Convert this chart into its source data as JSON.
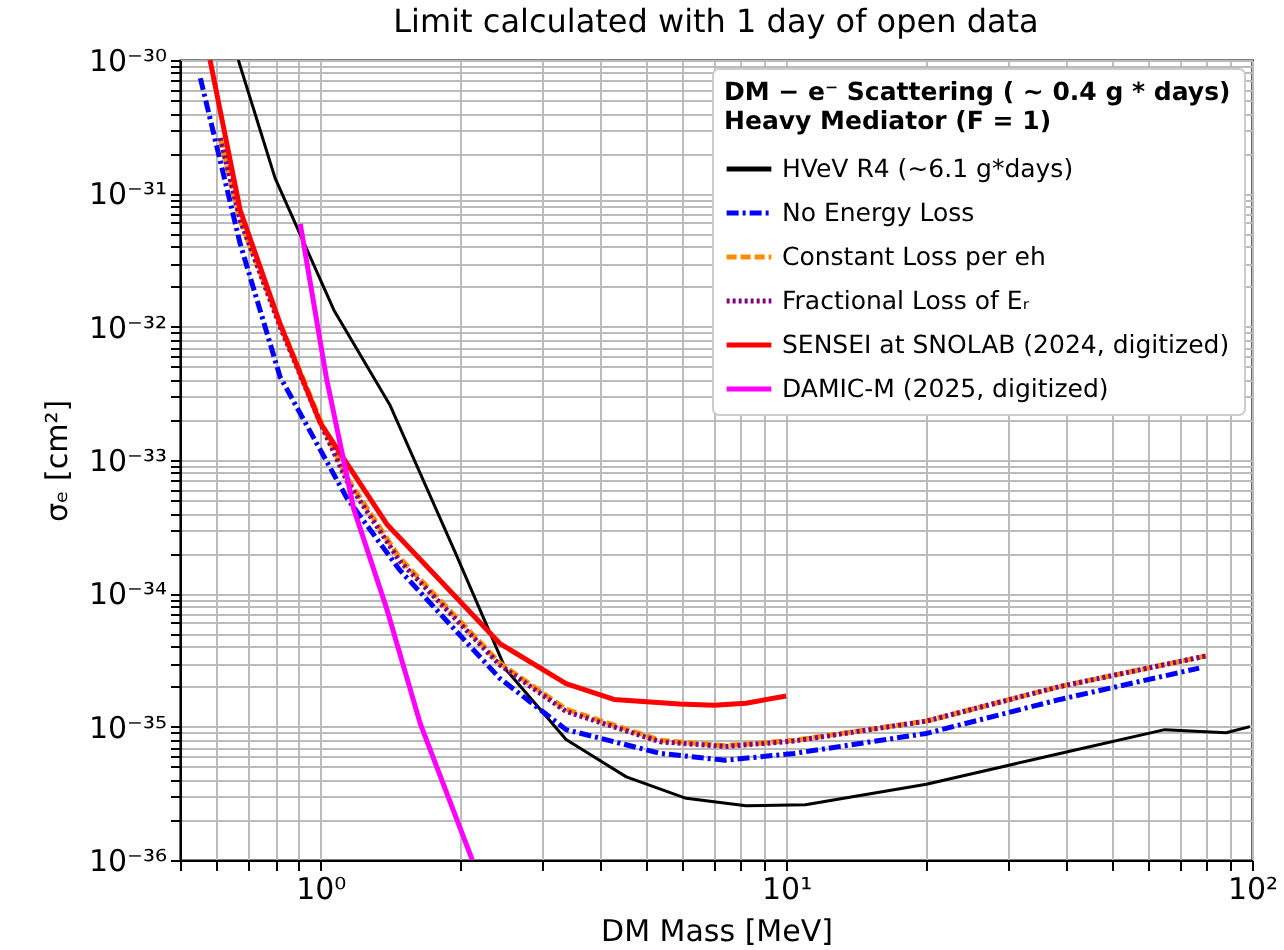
{
  "chart_data": {
    "type": "line",
    "title": "Limit calculated with 1 day of open data",
    "xlabel": "DM Mass [MeV]",
    "ylabel": "σₑ [cm²]",
    "legend_title": "DM − e⁻ Scattering ( ~ 0.4 g * days)\nHeavy Mediator (F = 1)",
    "log": "xy",
    "grid": true,
    "legend": "top right",
    "xlim": [
      0.5,
      100
    ],
    "ylim": [
      1e-36,
      1e-30
    ],
    "xticks": [
      {
        "value": 0.5,
        "label": null
      },
      {
        "value": 0.6,
        "label": null
      },
      {
        "value": 0.7,
        "label": null
      },
      {
        "value": 0.8,
        "label": null
      },
      {
        "value": 0.9,
        "label": null
      },
      {
        "value": 1,
        "label": "10⁰"
      },
      {
        "value": 2,
        "label": null
      },
      {
        "value": 3,
        "label": null
      },
      {
        "value": 4,
        "label": null
      },
      {
        "value": 5,
        "label": null
      },
      {
        "value": 6,
        "label": null
      },
      {
        "value": 7,
        "label": null
      },
      {
        "value": 8,
        "label": null
      },
      {
        "value": 9,
        "label": null
      },
      {
        "value": 10,
        "label": "10¹"
      },
      {
        "value": 20,
        "label": null
      },
      {
        "value": 30,
        "label": null
      },
      {
        "value": 40,
        "label": null
      },
      {
        "value": 50,
        "label": null
      },
      {
        "value": 60,
        "label": null
      },
      {
        "value": 70,
        "label": null
      },
      {
        "value": 80,
        "label": null
      },
      {
        "value": 90,
        "label": null
      },
      {
        "value": 100,
        "label": "10²"
      }
    ],
    "yticks": [
      {
        "value": 1e-36,
        "label": "10⁻³⁶"
      },
      {
        "value": 2e-36,
        "label": null
      },
      {
        "value": 3e-36,
        "label": null
      },
      {
        "value": 4e-36,
        "label": null
      },
      {
        "value": 5e-36,
        "label": null
      },
      {
        "value": 6e-36,
        "label": null
      },
      {
        "value": 7e-36,
        "label": null
      },
      {
        "value": 8e-36,
        "label": null
      },
      {
        "value": 9e-36,
        "label": null
      },
      {
        "value": 1e-35,
        "label": "10⁻³⁵"
      },
      {
        "value": 2e-35,
        "label": null
      },
      {
        "value": 3e-35,
        "label": null
      },
      {
        "value": 4e-35,
        "label": null
      },
      {
        "value": 5e-35,
        "label": null
      },
      {
        "value": 6e-35,
        "label": null
      },
      {
        "value": 7e-35,
        "label": null
      },
      {
        "value": 8e-35,
        "label": null
      },
      {
        "value": 9e-35,
        "label": null
      },
      {
        "value": 1e-34,
        "label": "10⁻³⁴"
      },
      {
        "value": 2e-34,
        "label": null
      },
      {
        "value": 3e-34,
        "label": null
      },
      {
        "value": 4e-34,
        "label": null
      },
      {
        "value": 5e-34,
        "label": null
      },
      {
        "value": 6e-34,
        "label": null
      },
      {
        "value": 7e-34,
        "label": null
      },
      {
        "value": 8e-34,
        "label": null
      },
      {
        "value": 9e-34,
        "label": null
      },
      {
        "value": 1e-33,
        "label": "10⁻³³"
      },
      {
        "value": 2e-33,
        "label": null
      },
      {
        "value": 3e-33,
        "label": null
      },
      {
        "value": 4e-33,
        "label": null
      },
      {
        "value": 5e-33,
        "label": null
      },
      {
        "value": 6e-33,
        "label": null
      },
      {
        "value": 7e-33,
        "label": null
      },
      {
        "value": 8e-33,
        "label": null
      },
      {
        "value": 9e-33,
        "label": null
      },
      {
        "value": 1e-32,
        "label": "10⁻³²"
      },
      {
        "value": 2e-32,
        "label": null
      },
      {
        "value": 3e-32,
        "label": null
      },
      {
        "value": 4e-32,
        "label": null
      },
      {
        "value": 5e-32,
        "label": null
      },
      {
        "value": 6e-32,
        "label": null
      },
      {
        "value": 7e-32,
        "label": null
      },
      {
        "value": 8e-32,
        "label": null
      },
      {
        "value": 9e-32,
        "label": null
      },
      {
        "value": 1e-31,
        "label": "10⁻³¹"
      },
      {
        "value": 2e-31,
        "label": null
      },
      {
        "value": 3e-31,
        "label": null
      },
      {
        "value": 4e-31,
        "label": null
      },
      {
        "value": 5e-31,
        "label": null
      },
      {
        "value": 6e-31,
        "label": null
      },
      {
        "value": 7e-31,
        "label": null
      },
      {
        "value": 8e-31,
        "label": null
      },
      {
        "value": 9e-31,
        "label": null
      },
      {
        "value": 1e-30,
        "label": "10⁻³⁰"
      }
    ],
    "series": [
      {
        "name": "HVeV R4 (~6.1 g*days)",
        "color": "#000000",
        "line_style": "solid",
        "x": [
          0.667,
          0.8,
          1.07,
          1.41,
          1.94,
          2.5,
          3.37,
          4.54,
          6.1,
          8.2,
          11,
          20,
          38.7,
          65,
          88,
          99
        ],
        "values": [
          1e-30,
          1.3e-31,
          1.33e-32,
          2.6e-33,
          2.1e-34,
          2.7e-35,
          8e-36,
          4.2e-36,
          2.9e-36,
          2.55e-36,
          2.6e-36,
          3.7e-36,
          6.3e-36,
          9.5e-36,
          9e-36,
          1e-35
        ]
      },
      {
        "name": "No Energy Loss",
        "color": "#0000ff",
        "line_style": "dashdot",
        "x": [
          0.553,
          0.673,
          0.82,
          1.14,
          1.48,
          2.43,
          3.37,
          5.37,
          7.4,
          10.4,
          20,
          38.7,
          77
        ],
        "values": [
          7.3e-31,
          4.2e-32,
          4.2e-33,
          5.2e-34,
          1.5e-34,
          2.3e-35,
          9.5e-36,
          6.3e-36,
          5.6e-36,
          6.3e-36,
          8.9e-36,
          1.6e-35,
          2.75e-35
        ]
      },
      {
        "name": "Constant Loss per eh",
        "color": "#ff8c00",
        "line_style": "dashed",
        "x": [
          0.61,
          0.673,
          0.82,
          1.0,
          1.14,
          1.48,
          2.43,
          3.37,
          5.37,
          7.4,
          10.4,
          20,
          38.7,
          80
        ],
        "values": [
          2.6e-31,
          6.3e-32,
          1.05e-32,
          2e-33,
          7.4e-34,
          1.85e-34,
          3e-35,
          1.35e-35,
          7.9e-36,
          7.2e-36,
          7.9e-36,
          1.1e-35,
          2e-35,
          3.4e-35
        ]
      },
      {
        "name": "Fractional Loss of Eᵣ",
        "color": "#800080",
        "line_style": "dotted",
        "x": [
          0.61,
          0.673,
          0.82,
          1.0,
          1.14,
          1.48,
          2.43,
          3.37,
          5.37,
          7.4,
          10.4,
          20,
          38.7,
          80
        ],
        "values": [
          2.6e-31,
          6.3e-32,
          1e-32,
          1.9e-33,
          7e-34,
          1.75e-34,
          2.9e-35,
          1.3e-35,
          7.7e-36,
          7.1e-36,
          7.8e-36,
          1.1e-35,
          2e-35,
          3.4e-35
        ]
      },
      {
        "name": "SENSEI at SNOLAB (2024, digitized)",
        "color": "#ff0000",
        "line_style": "solid",
        "x": [
          0.58,
          0.673,
          0.82,
          1.0,
          1.39,
          2.43,
          3.37,
          4.27,
          5.9,
          7.0,
          8.2,
          10
        ],
        "values": [
          1e-30,
          7.5e-32,
          1.05e-32,
          1.9e-33,
          3.3e-34,
          4.2e-35,
          2.1e-35,
          1.6e-35,
          1.48e-35,
          1.45e-35,
          1.5e-35,
          1.7e-35
        ]
      },
      {
        "name": "DAMIC-M (2025, digitized)",
        "color": "#ff00ff",
        "line_style": "solid",
        "x": [
          0.906,
          1.03,
          1.18,
          1.39,
          1.64,
          2.12
        ],
        "values": [
          5.9e-32,
          4.2e-33,
          4.3e-34,
          7.6e-35,
          1.05e-35,
          1e-36
        ]
      }
    ]
  }
}
